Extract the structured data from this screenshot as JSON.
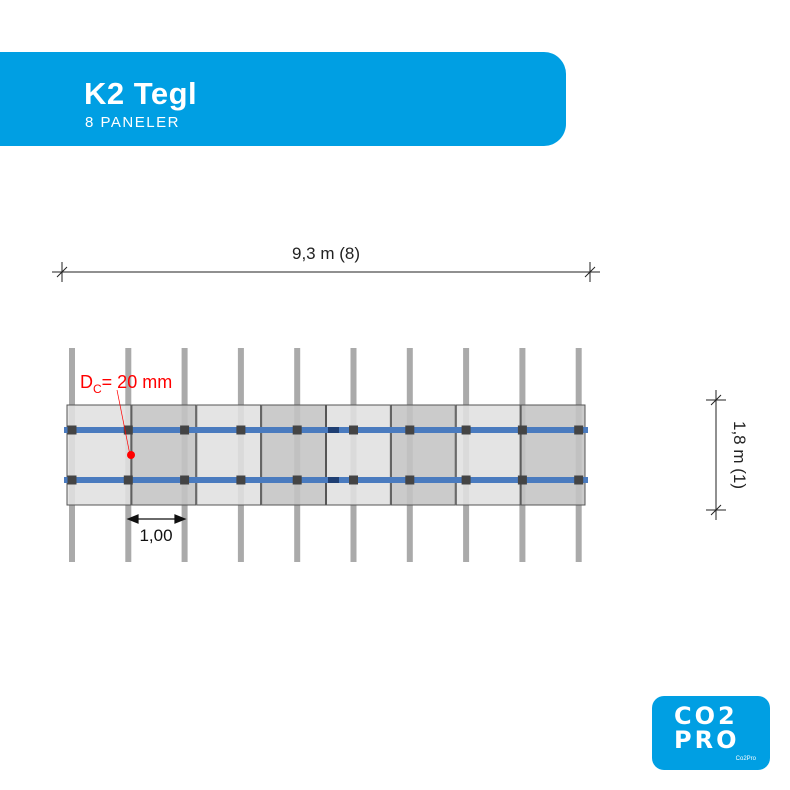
{
  "header": {
    "title": "K2 Tegl",
    "subtitle": "8 PANELER"
  },
  "dimensions": {
    "width_label": "9,3 m (8)",
    "height_label": "1,8 m (1)",
    "spacing_label": "1,00"
  },
  "annotation": {
    "prefix": "D",
    "subscript": "C",
    "suffix": "= 20 mm"
  },
  "layout": {
    "panel_count": 8,
    "vertical_rail_count": 10,
    "horizontal_rail_count": 2
  },
  "colors": {
    "brand": "#009fe3",
    "rail": "#4a7bbf",
    "annotation": "#ff0000",
    "panel_light": "#e0e0e0",
    "panel_dark": "#c4c4c4"
  },
  "logo": {
    "line1": "CO2",
    "line2": "PRO",
    "small": "Co2Pro"
  }
}
